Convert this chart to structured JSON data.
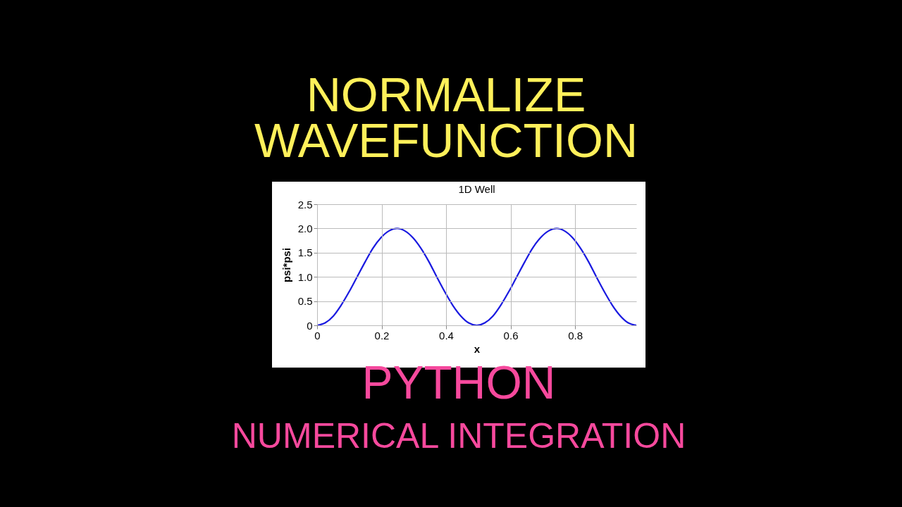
{
  "chart_data": {
    "type": "line",
    "title": "1D Well",
    "xlabel": "x",
    "ylabel": "psi*psi",
    "annotations": [
      "NORMALIZE",
      "WAVEFUNCTION",
      "PYTHON",
      "NUMERICAL INTEGRATION"
    ],
    "x": [
      0,
      0.025,
      0.05,
      0.074,
      0.099,
      0.124,
      0.149,
      0.173,
      0.198,
      0.223,
      0.248,
      0.272,
      0.297,
      0.322,
      0.347,
      0.371,
      0.396,
      0.421,
      0.446,
      0.47,
      0.495,
      0.52,
      0.545,
      0.569,
      0.594,
      0.619,
      0.644,
      0.668,
      0.693,
      0.718,
      0.743,
      0.767,
      0.792,
      0.817,
      0.842,
      0.866,
      0.891,
      0.916,
      0.941,
      0.965,
      0.99
    ],
    "series": [
      {
        "color": "#1a1ae0",
        "values": [
          0,
          0.05,
          0.19,
          0.41,
          0.69,
          1.0,
          1.31,
          1.59,
          1.81,
          1.95,
          2.0,
          1.95,
          1.81,
          1.59,
          1.31,
          1.0,
          0.69,
          0.41,
          0.19,
          0.05,
          0,
          0.05,
          0.19,
          0.41,
          0.69,
          1.0,
          1.31,
          1.59,
          1.81,
          1.95,
          2.0,
          1.95,
          1.81,
          1.59,
          1.31,
          1.0,
          0.69,
          0.41,
          0.19,
          0.05,
          0
        ]
      }
    ],
    "xlim": [
      0,
      0.99
    ],
    "ylim": [
      0,
      2.5
    ],
    "xticks": [
      0,
      0.2,
      0.4,
      0.6,
      0.8
    ],
    "yticks": [
      0,
      0.5,
      {
        "value": 1,
        "label": "1.0"
      },
      1.5,
      {
        "value": 2,
        "label": "2.0"
      },
      2.5
    ],
    "grid": true,
    "marker": "none",
    "line_style": "solid"
  }
}
